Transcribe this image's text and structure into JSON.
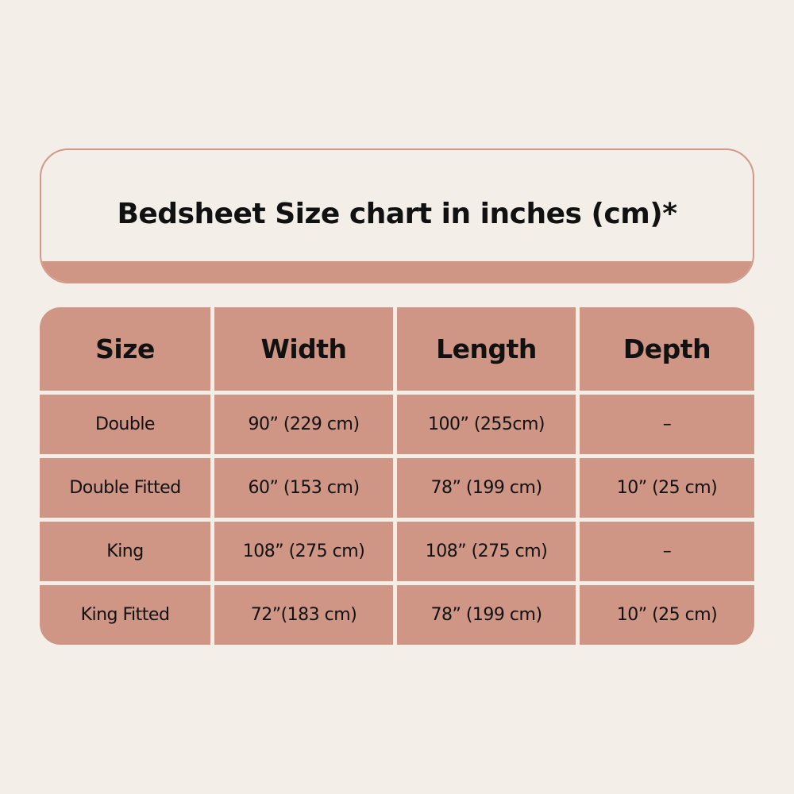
{
  "title": "Bedsheet Size chart in inches (cm)*",
  "colors": {
    "background": "#f3eee8",
    "accent": "#cf9585",
    "text": "#111111"
  },
  "table": {
    "headers": [
      "Size",
      "Width",
      "Length",
      "Depth"
    ],
    "rows": [
      [
        "Double",
        "90” (229 cm)",
        "100” (255cm)",
        "–"
      ],
      [
        "Double Fitted",
        "60” (153 cm)",
        "78” (199 cm)",
        "10” (25 cm)"
      ],
      [
        "King",
        "108” (275 cm)",
        "108” (275 cm)",
        "–"
      ],
      [
        "King Fitted",
        "72”(183 cm)",
        "78” (199 cm)",
        "10” (25 cm)"
      ]
    ]
  }
}
